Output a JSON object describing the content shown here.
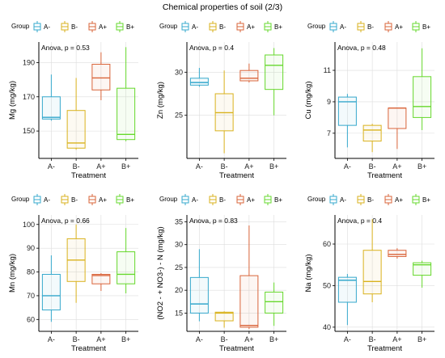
{
  "title": "Chemical properties of soil (2/3)",
  "legend": {
    "title": "Group",
    "items": [
      "A-",
      "B-",
      "A+",
      "B+"
    ]
  },
  "colors": {
    "A-": "#35a8cc",
    "B-": "#d9b21c",
    "A+": "#d9643a",
    "B+": "#66d82c",
    "grid": "#dddddd"
  },
  "chart_data": [
    {
      "type": "box",
      "ylabel": "Mg (mg/kg)",
      "xlabel": "Treatment",
      "annotation": "Anova, p = 0.53",
      "categories": [
        "A-",
        "B-",
        "A+",
        "B+"
      ],
      "ylim": [
        134,
        202
      ],
      "yticks": [
        150,
        170,
        190
      ],
      "boxes": [
        {
          "group": "A-",
          "min": 156,
          "q1": 157,
          "median": 158,
          "q3": 170,
          "max": 183
        },
        {
          "group": "B-",
          "min": 139,
          "q1": 140,
          "median": 143,
          "q3": 162,
          "max": 181
        },
        {
          "group": "A+",
          "min": 168,
          "q1": 174,
          "median": 181,
          "q3": 189,
          "max": 196
        },
        {
          "group": "B+",
          "min": 144,
          "q1": 145,
          "median": 148,
          "q3": 175,
          "max": 199
        }
      ]
    },
    {
      "type": "box",
      "ylabel": "Zn (mg/kg)",
      "xlabel": "Treatment",
      "annotation": "Anova, p = 0.4",
      "categories": [
        "A-",
        "B-",
        "A+",
        "B+"
      ],
      "ylim": [
        20,
        33.5
      ],
      "yticks": [
        25,
        30
      ],
      "boxes": [
        {
          "group": "A-",
          "min": 28.3,
          "q1": 28.5,
          "median": 28.8,
          "q3": 29.3,
          "max": 30.5
        },
        {
          "group": "B-",
          "min": 20.6,
          "q1": 23.2,
          "median": 25.3,
          "q3": 27.5,
          "max": 30.2
        },
        {
          "group": "A+",
          "min": 28.8,
          "q1": 29.0,
          "median": 29.3,
          "q3": 30.2,
          "max": 31.0
        },
        {
          "group": "B+",
          "min": 25.0,
          "q1": 28.0,
          "median": 30.8,
          "q3": 32.0,
          "max": 32.8
        }
      ]
    },
    {
      "type": "box",
      "ylabel": "Cu (mg/kg)",
      "xlabel": "Treatment",
      "annotation": "Anova, p = 0.48",
      "categories": [
        "A-",
        "B-",
        "A+",
        "B+"
      ],
      "ylim": [
        5.4,
        12.8
      ],
      "yticks": [
        7,
        9,
        11
      ],
      "boxes": [
        {
          "group": "A-",
          "min": 6.1,
          "q1": 7.5,
          "median": 9.0,
          "q3": 9.3,
          "max": 9.5
        },
        {
          "group": "B-",
          "min": 5.8,
          "q1": 6.5,
          "median": 7.2,
          "q3": 7.5,
          "max": 7.6
        },
        {
          "group": "A+",
          "min": 6.0,
          "q1": 7.3,
          "median": 8.6,
          "q3": 8.6,
          "max": 8.6
        },
        {
          "group": "B+",
          "min": 7.2,
          "q1": 8.0,
          "median": 8.7,
          "q3": 10.6,
          "max": 12.4
        }
      ]
    },
    {
      "type": "box",
      "ylabel": "Mn (mg/kg)",
      "xlabel": "Treatment",
      "annotation": "Anova, p = 0.66",
      "categories": [
        "A-",
        "B-",
        "A+",
        "B+"
      ],
      "ylim": [
        55,
        104
      ],
      "yticks": [
        60,
        70,
        80,
        90,
        100
      ],
      "boxes": [
        {
          "group": "A-",
          "min": 59,
          "q1": 64,
          "median": 70,
          "q3": 79,
          "max": 87
        },
        {
          "group": "B-",
          "min": 67,
          "q1": 76,
          "median": 85,
          "q3": 94,
          "max": 100
        },
        {
          "group": "A+",
          "min": 72,
          "q1": 75,
          "median": 78.5,
          "q3": 79,
          "max": 79.5
        },
        {
          "group": "B+",
          "min": 71,
          "q1": 75,
          "median": 79,
          "q3": 88.5,
          "max": 98.5
        }
      ]
    },
    {
      "type": "box",
      "ylabel": "(NO2 - + NO3-) - N (mg/kg)",
      "xlabel": "Treatment",
      "annotation": "Anova, p = 0.83",
      "categories": [
        "A-",
        "B-",
        "A+",
        "B+"
      ],
      "ylim": [
        11,
        36.5
      ],
      "yticks": [
        15,
        20,
        25,
        30,
        35
      ],
      "boxes": [
        {
          "group": "A-",
          "min": 13.2,
          "q1": 15,
          "median": 17,
          "q3": 22.8,
          "max": 29
        },
        {
          "group": "B-",
          "min": 11.8,
          "q1": 13.3,
          "median": 15,
          "q3": 15.2,
          "max": 15.4
        },
        {
          "group": "A+",
          "min": 11.5,
          "q1": 11.9,
          "median": 12.3,
          "q3": 23.2,
          "max": 34.2
        },
        {
          "group": "B+",
          "min": 12.2,
          "q1": 15,
          "median": 17.5,
          "q3": 19.6,
          "max": 21.7
        }
      ]
    },
    {
      "type": "box",
      "ylabel": "Na (mg/kg)",
      "xlabel": "Treatment",
      "annotation": "Anova, p = 0.4",
      "categories": [
        "A-",
        "B-",
        "A+",
        "B+"
      ],
      "ylim": [
        39,
        67
      ],
      "yticks": [
        40,
        50,
        60
      ],
      "boxes": [
        {
          "group": "A-",
          "min": 40.5,
          "q1": 46,
          "median": 51.3,
          "q3": 52,
          "max": 52.8
        },
        {
          "group": "B-",
          "min": 46,
          "q1": 48,
          "median": 51,
          "q3": 58.5,
          "max": 66
        },
        {
          "group": "A+",
          "min": 56.5,
          "q1": 57,
          "median": 57.5,
          "q3": 58.5,
          "max": 59
        },
        {
          "group": "B+",
          "min": 49.5,
          "q1": 52.5,
          "median": 55,
          "q3": 55.5,
          "max": 56
        }
      ]
    }
  ]
}
